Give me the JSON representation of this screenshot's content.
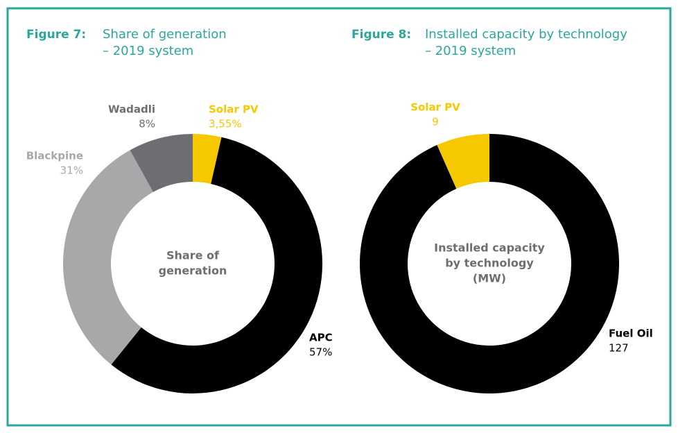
{
  "chart_data": [
    {
      "type": "donut",
      "figure": "Figure 7:",
      "title": [
        "Share of generation",
        "– 2019 system"
      ],
      "center_label": [
        "Share of",
        "generation"
      ],
      "categories": [
        "Solar PV",
        "APC",
        "Blackpine",
        "Wadadli"
      ],
      "values": [
        3.55,
        57,
        31,
        8
      ],
      "value_labels": [
        "3,55%",
        "57%",
        "31%",
        "8%"
      ],
      "colors": [
        "#f6c800",
        "#000000",
        "#a7a8aa",
        "#6d6e71"
      ],
      "label_colors": [
        "#f6c800",
        "#000000",
        "#a7a8aa",
        "#6d6e71"
      ]
    },
    {
      "type": "donut",
      "figure": "Figure 8:",
      "title": [
        "Installed capacity by technology",
        "– 2019 system"
      ],
      "center_label": [
        "Installed capacity",
        "by technology",
        "(MW)"
      ],
      "categories": [
        "Fuel Oil",
        "Solar PV"
      ],
      "values": [
        127,
        9
      ],
      "colors": [
        "#000000",
        "#f6c800"
      ],
      "label_colors": [
        "#000000",
        "#f6c800"
      ]
    }
  ]
}
